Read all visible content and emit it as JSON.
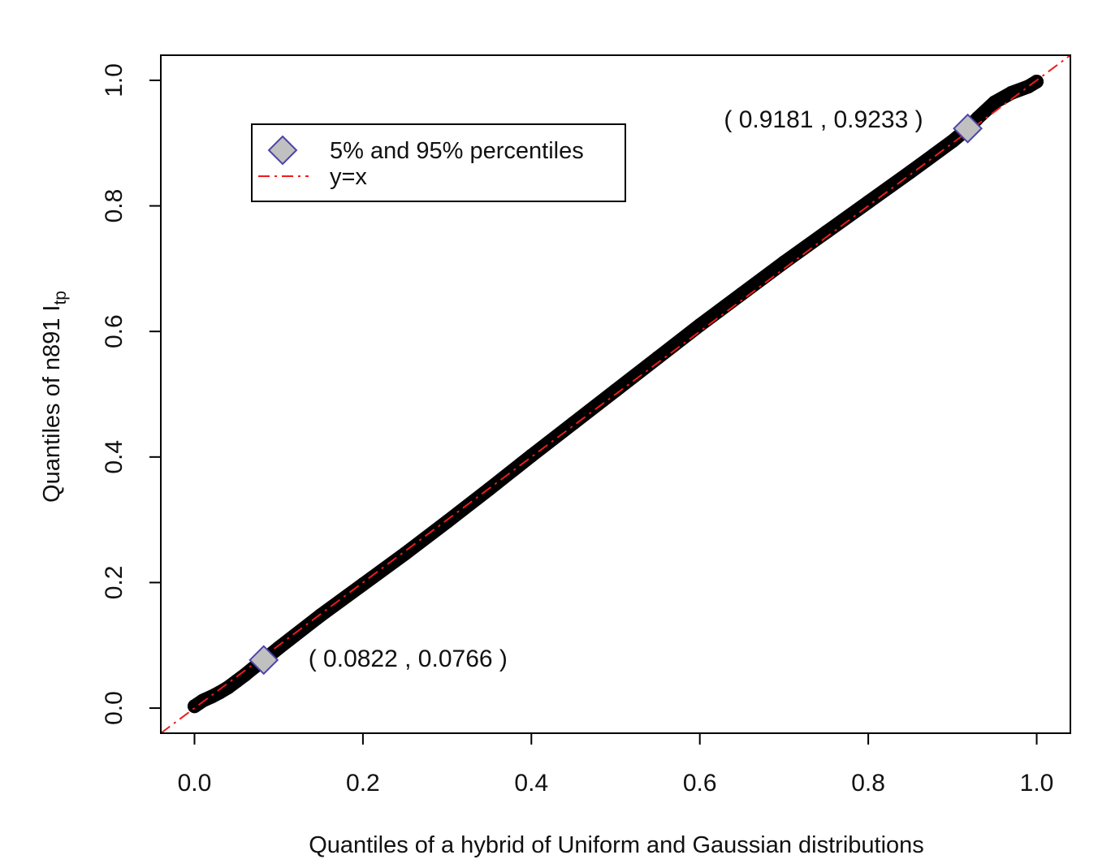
{
  "chart_data": {
    "type": "scatter",
    "title": "",
    "xlabel": "Quantiles of a hybrid of Uniform and Gaussian distributions",
    "ylabel_main": "Quantiles of n891 I",
    "ylabel_sub": "tp",
    "xlim": [
      -0.04,
      1.04
    ],
    "ylim": [
      -0.04,
      1.04
    ],
    "x_ticks": [
      0.0,
      0.2,
      0.4,
      0.6,
      0.8,
      1.0
    ],
    "x_tick_labels": [
      "0.0",
      "0.2",
      "0.4",
      "0.6",
      "0.8",
      "1.0"
    ],
    "y_ticks": [
      0.0,
      0.2,
      0.4,
      0.6,
      0.8,
      1.0
    ],
    "y_tick_labels": [
      "0.0",
      "0.2",
      "0.4",
      "0.6",
      "0.8",
      "1.0"
    ],
    "grid": false,
    "series": [
      {
        "type": "scatter",
        "color": "#000000",
        "x": [
          0.0,
          0.01,
          0.02,
          0.03,
          0.04,
          0.05,
          0.06,
          0.07,
          0.0822,
          0.1,
          0.15,
          0.2,
          0.25,
          0.3,
          0.35,
          0.4,
          0.45,
          0.5,
          0.55,
          0.6,
          0.65,
          0.7,
          0.75,
          0.8,
          0.85,
          0.9,
          0.9181,
          0.93,
          0.95,
          0.97,
          0.99,
          1.0
        ],
        "y": [
          0.003,
          0.012,
          0.018,
          0.025,
          0.033,
          0.043,
          0.053,
          0.064,
          0.0766,
          0.096,
          0.148,
          0.197,
          0.246,
          0.297,
          0.349,
          0.402,
          0.454,
          0.506,
          0.558,
          0.61,
          0.66,
          0.71,
          0.758,
          0.806,
          0.854,
          0.903,
          0.9233,
          0.94,
          0.965,
          0.98,
          0.99,
          0.998
        ]
      },
      {
        "type": "line",
        "name": "y=x",
        "color": "#ee1c1c",
        "style": "dash-dot",
        "x": [
          -0.04,
          1.04
        ],
        "y": [
          -0.04,
          1.04
        ]
      },
      {
        "type": "marker",
        "name": "5% and 95% percentiles",
        "marker": "diamond",
        "fill": "#c0c0c0",
        "stroke": "#4b45a8",
        "x": [
          0.0822,
          0.9181
        ],
        "y": [
          0.0766,
          0.9233
        ]
      }
    ],
    "annotations": [
      {
        "text": "( 0.0822 , 0.0766 )",
        "x": 0.0822,
        "y": 0.0766
      },
      {
        "text": "( 0.9181 , 0.9233 )",
        "x": 0.9181,
        "y": 0.9233
      }
    ],
    "legend": {
      "placement": "top-left",
      "entries": [
        {
          "label": "5% and 95% percentiles",
          "symbol": "diamond"
        },
        {
          "label": "y=x",
          "symbol": "dash-dot-line"
        }
      ]
    }
  }
}
